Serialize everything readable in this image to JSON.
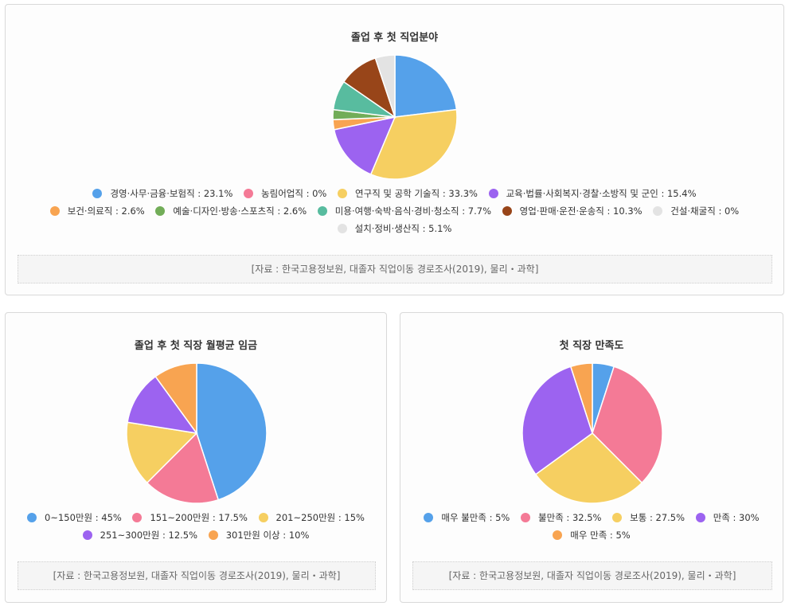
{
  "colors": {
    "blue": "#55a1ea",
    "pink": "#f47a96",
    "yellow": "#f6cf61",
    "purple": "#9c63f0",
    "orange": "#f8a451",
    "green": "#72ad58",
    "teal": "#58bc9f",
    "brown": "#984519",
    "lightgray": "#e3e3e3"
  },
  "chart_data": [
    {
      "type": "pie",
      "title": "졸업 후 첫 직업분야",
      "categories": [
        "경영·사무·금융·보험직",
        "농림어업직",
        "연구직 및 공학 기술직",
        "교육·법률·사회복지·경찰·소방직 및 군인",
        "보건·의료직",
        "예술·디자인·방송·스포츠직",
        "미용·여행·숙박·음식·경비·청소직",
        "영업·판매·운전·운송직",
        "건설·채굴직",
        "설치·정비·생산직"
      ],
      "values": [
        23.1,
        0,
        33.3,
        15.4,
        2.6,
        2.6,
        7.7,
        10.3,
        0,
        5.1
      ],
      "legend_labels": [
        "경영·사무·금융·보험직 : 23.1%",
        "농림어업직 : 0%",
        "연구직 및 공학 기술직 : 33.3%",
        "교육·법률·사회복지·경찰·소방직 및 군인 : 15.4%",
        "보건·의료직 : 2.6%",
        "예술·디자인·방송·스포츠직 : 2.6%",
        "미용·여행·숙박·음식·경비·청소직 : 7.7%",
        "영업·판매·운전·운송직 : 10.3%",
        "건설·채굴직 : 0%",
        "설치·정비·생산직 : 5.1%"
      ],
      "colors": [
        "#55a1ea",
        "#f47a96",
        "#f6cf61",
        "#9c63f0",
        "#f8a451",
        "#72ad58",
        "#58bc9f",
        "#984519",
        "#e3e3e3",
        "#e3e3e3"
      ],
      "legend_placement": "bottom",
      "source": "[자료 : 한국고용정보원, 대졸자 직업이동 경로조사(2019), 물리・과학]"
    },
    {
      "type": "pie",
      "title": "졸업 후 첫 직장 월평균 임금",
      "categories": [
        "0~150만원",
        "151~200만원",
        "201~250만원",
        "251~300만원",
        "301만원 이상"
      ],
      "values": [
        45,
        17.5,
        15,
        12.5,
        10
      ],
      "legend_labels": [
        "0~150만원 : 45%",
        "151~200만원 : 17.5%",
        "201~250만원 : 15%",
        "251~300만원 : 12.5%",
        "301만원 이상 : 10%"
      ],
      "colors": [
        "#55a1ea",
        "#f47a96",
        "#f6cf61",
        "#9c63f0",
        "#f8a451"
      ],
      "legend_placement": "bottom",
      "source": "[자료 : 한국고용정보원, 대졸자 직업이동 경로조사(2019), 물리・과학]"
    },
    {
      "type": "pie",
      "title": "첫 직장 만족도",
      "categories": [
        "매우 불만족",
        "불만족",
        "보통",
        "만족",
        "매우 만족"
      ],
      "values": [
        5,
        32.5,
        27.5,
        30,
        5
      ],
      "legend_labels": [
        "매우 불만족 : 5%",
        "불만족 : 32.5%",
        "보통 : 27.5%",
        "만족 : 30%",
        "매우 만족 : 5%"
      ],
      "colors": [
        "#55a1ea",
        "#f47a96",
        "#f6cf61",
        "#9c63f0",
        "#f8a451"
      ],
      "legend_placement": "bottom",
      "source": "[자료 : 한국고용정보원, 대졸자 직업이동 경로조사(2019), 물리・과학]"
    }
  ]
}
